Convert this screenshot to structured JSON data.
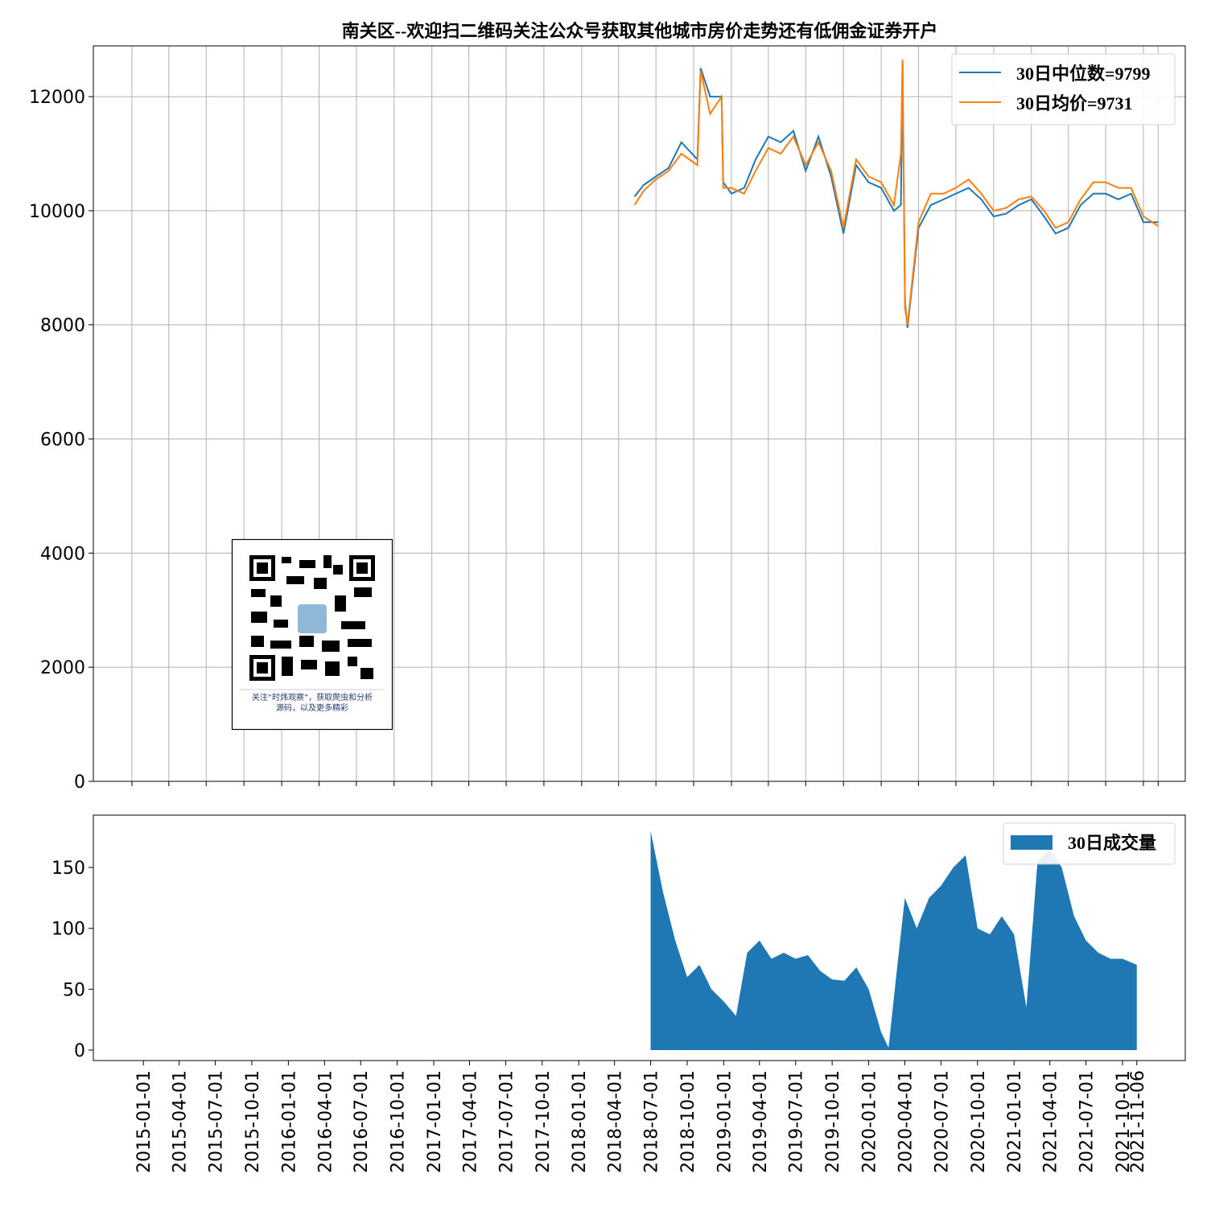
{
  "chart_data": [
    {
      "type": "line",
      "title": "南关区--欢迎扫二维码关注公众号获取其他城市房价走势还有低佣金证券开户",
      "annotation": [
        "关注“时炜观察”，获取爬虫和分析",
        "源码，以及更多精彩"
      ],
      "x": [
        "2018-05-10",
        "2018-06-01",
        "2018-07-01",
        "2018-08-01",
        "2018-09-01",
        "2018-10-10",
        "2018-10-18",
        "2018-11-10",
        "2018-12-08",
        "2018-12-12",
        "2019-01-01",
        "2019-02-01",
        "2019-03-01",
        "2019-04-01",
        "2019-05-01",
        "2019-06-01",
        "2019-07-01",
        "2019-08-01",
        "2019-09-01",
        "2019-10-01",
        "2019-11-01",
        "2019-12-01",
        "2020-01-01",
        "2020-02-01",
        "2020-02-18",
        "2020-02-22",
        "2020-02-28",
        "2020-03-05",
        "2020-04-01",
        "2020-05-01",
        "2020-06-01",
        "2020-07-01",
        "2020-08-01",
        "2020-09-01",
        "2020-10-01",
        "2020-11-01",
        "2020-12-01",
        "2021-01-01",
        "2021-02-01",
        "2021-03-01",
        "2021-04-01",
        "2021-05-01",
        "2021-06-01",
        "2021-07-01",
        "2021-08-01",
        "2021-09-01",
        "2021-10-01",
        "2021-11-06"
      ],
      "series": [
        {
          "name": "30日中位数=9799",
          "color": "#1f77b4",
          "values": [
            10250,
            10450,
            10600,
            10750,
            11200,
            10900,
            12500,
            12000,
            12000,
            10500,
            10300,
            10400,
            10900,
            11300,
            11200,
            11400,
            10700,
            11300,
            10600,
            9600,
            10800,
            10500,
            10400,
            10000,
            10100,
            12600,
            8400,
            7950,
            9700,
            10100,
            10200,
            10300,
            10400,
            10200,
            9900,
            9950,
            10100,
            10200,
            9900,
            9600,
            9700,
            10100,
            10300,
            10300,
            10200,
            10300,
            9800,
            9799
          ]
        },
        {
          "name": "30日均价=9731",
          "color": "#ff7f0e",
          "values": [
            10100,
            10350,
            10550,
            10700,
            11000,
            10800,
            12450,
            11700,
            12000,
            10400,
            10400,
            10300,
            10700,
            11100,
            11000,
            11300,
            10800,
            11200,
            10700,
            9700,
            10900,
            10600,
            10500,
            10100,
            11000,
            12650,
            8300,
            8000,
            9800,
            10300,
            10300,
            10400,
            10550,
            10300,
            10000,
            10050,
            10200,
            10250,
            10000,
            9700,
            9800,
            10200,
            10500,
            10500,
            10400,
            10400,
            9900,
            9731
          ]
        }
      ],
      "xlim": [
        "2014-09-29",
        "2022-01-11"
      ],
      "xticks": [
        "2015-01-01",
        "2015-04-01",
        "2015-07-01",
        "2015-10-01",
        "2016-01-01",
        "2016-04-01",
        "2016-07-01",
        "2016-10-01",
        "2017-01-01",
        "2017-04-01",
        "2017-07-01",
        "2017-10-01",
        "2018-01-01",
        "2018-04-01",
        "2018-07-01",
        "2018-10-01",
        "2019-01-01",
        "2019-04-01",
        "2019-07-01",
        "2019-10-01",
        "2020-01-01",
        "2020-04-01",
        "2020-07-01",
        "2020-10-01",
        "2021-01-01",
        "2021-04-01",
        "2021-07-01",
        "2021-10-01",
        "2021-11-06"
      ],
      "ylim": [
        0,
        12890
      ],
      "yticks": [
        0,
        2000,
        4000,
        6000,
        8000,
        10000,
        12000
      ],
      "grid": true,
      "legend": "upper right"
    },
    {
      "type": "area",
      "x": [
        "2018-07-01",
        "2018-08-01",
        "2018-09-01",
        "2018-10-01",
        "2018-11-01",
        "2018-12-01",
        "2019-01-01",
        "2019-02-01",
        "2019-03-01",
        "2019-04-01",
        "2019-05-01",
        "2019-06-01",
        "2019-07-01",
        "2019-08-01",
        "2019-09-01",
        "2019-10-01",
        "2019-11-01",
        "2019-12-01",
        "2020-01-01",
        "2020-02-01",
        "2020-02-20",
        "2020-03-10",
        "2020-04-01",
        "2020-05-01",
        "2020-06-01",
        "2020-07-01",
        "2020-08-01",
        "2020-09-01",
        "2020-10-01",
        "2020-11-01",
        "2020-12-01",
        "2021-01-01",
        "2021-02-01",
        "2021-03-01",
        "2021-04-01",
        "2021-05-01",
        "2021-06-01",
        "2021-07-01",
        "2021-08-01",
        "2021-09-01",
        "2021-10-01",
        "2021-11-06"
      ],
      "series": [
        {
          "name": "30日成交量",
          "color": "#1f77b4",
          "values": [
            180,
            130,
            90,
            60,
            70,
            50,
            40,
            28,
            80,
            90,
            75,
            80,
            75,
            78,
            65,
            58,
            57,
            68,
            50,
            15,
            2,
            60,
            125,
            100,
            125,
            135,
            150,
            160,
            100,
            95,
            110,
            95,
            35,
            155,
            165,
            150,
            110,
            90,
            80,
            75,
            75,
            70
          ]
        }
      ],
      "xlim": [
        "2014-08-28",
        "2022-03-08"
      ],
      "xticks": [
        "2015-01-01",
        "2015-04-01",
        "2015-07-01",
        "2015-10-01",
        "2016-01-01",
        "2016-04-01",
        "2016-07-01",
        "2016-10-01",
        "2017-01-01",
        "2017-04-01",
        "2017-07-01",
        "2017-10-01",
        "2018-01-01",
        "2018-04-01",
        "2018-07-01",
        "2018-10-01",
        "2019-01-01",
        "2019-04-01",
        "2019-07-01",
        "2019-10-01",
        "2020-01-01",
        "2020-04-01",
        "2020-07-01",
        "2020-10-01",
        "2021-01-01",
        "2021-04-01",
        "2021-07-01",
        "2021-10-01",
        "2021-11-06"
      ],
      "ylim": [
        -8.6,
        193
      ],
      "yticks": [
        0,
        50,
        100,
        150
      ],
      "grid": false,
      "legend": "upper right"
    }
  ]
}
